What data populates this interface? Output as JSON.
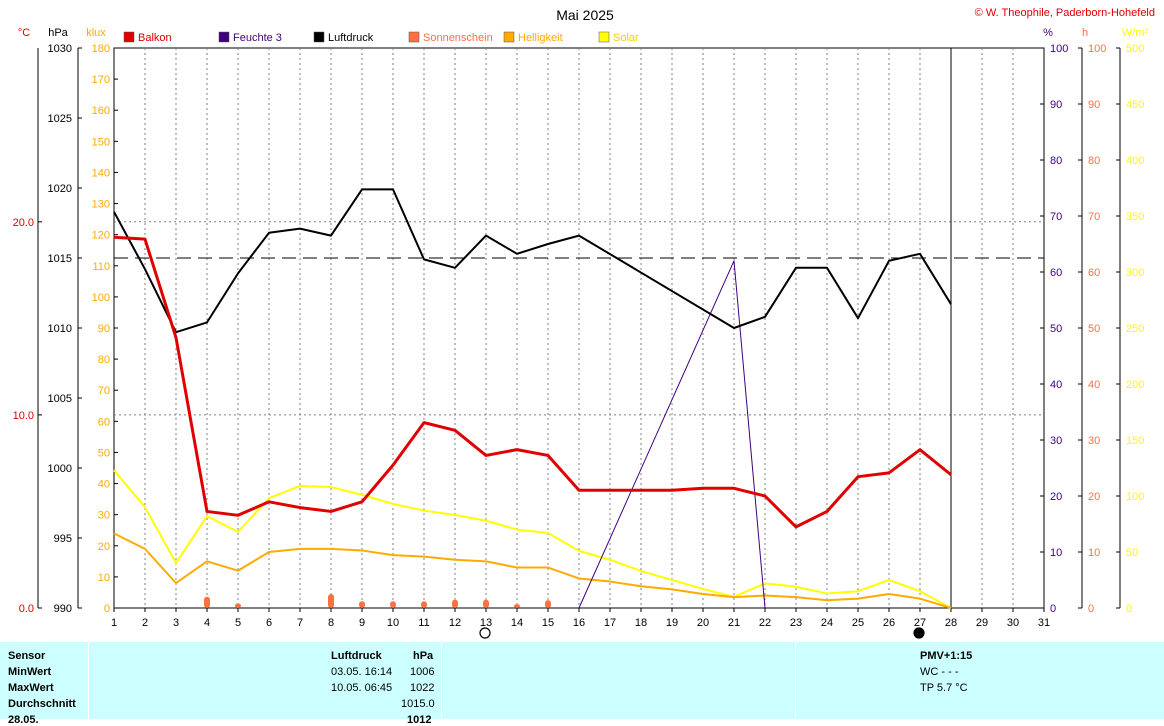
{
  "chart_data": {
    "type": "line",
    "title": "Mai 2025",
    "credit": "© W. Theophile, Paderborn-Hohefeld",
    "x": [
      1,
      2,
      3,
      4,
      5,
      6,
      7,
      8,
      9,
      10,
      11,
      12,
      13,
      14,
      15,
      16,
      17,
      18,
      19,
      20,
      21,
      22,
      23,
      24,
      25,
      26,
      27,
      28,
      29,
      30,
      31
    ],
    "xlim": [
      1,
      31
    ],
    "axes": {
      "temperature": {
        "unit": "°C",
        "range": [
          0,
          29
        ],
        "ticks": [
          0,
          10,
          20
        ],
        "tick_labels": [
          "0.0",
          "10.0",
          "20.0"
        ],
        "color": "#e00000"
      },
      "pressure": {
        "unit": "hPa",
        "range": [
          990,
          1030
        ],
        "ticks": [
          990,
          995,
          1000,
          1005,
          1010,
          1015,
          1020,
          1025,
          1030
        ],
        "color": "#000000"
      },
      "illuminance": {
        "unit": "klux",
        "range": [
          0,
          180
        ],
        "ticks": [
          0,
          10,
          20,
          30,
          40,
          50,
          60,
          70,
          80,
          90,
          100,
          110,
          120,
          130,
          140,
          150,
          160,
          170,
          180
        ],
        "color": "#ffaa00"
      },
      "humidity": {
        "unit": "%",
        "range": [
          0,
          100
        ],
        "ticks": [
          0,
          10,
          20,
          30,
          40,
          50,
          60,
          70,
          80,
          90,
          100
        ],
        "color": "#400080"
      },
      "sunshine": {
        "unit": "h",
        "range": [
          0,
          100
        ],
        "ticks": [
          0,
          10,
          20,
          30,
          40,
          50,
          60,
          70,
          80,
          90,
          100
        ],
        "color": "#ff7040"
      },
      "solar": {
        "unit": "W/m²",
        "range": [
          0,
          500
        ],
        "ticks": [
          0,
          50,
          100,
          150,
          200,
          250,
          300,
          350,
          400,
          450,
          500
        ],
        "color": "#ffff00"
      }
    },
    "grid": true,
    "legend": {
      "placement": "top"
    },
    "series": [
      {
        "name": "Balkon",
        "axis": "temperature",
        "color": "#e00000",
        "x": [
          1,
          2,
          3,
          4,
          5,
          6,
          7,
          8,
          9,
          10,
          11,
          12,
          13,
          14,
          15,
          16,
          17,
          18,
          19,
          20,
          21,
          22,
          23,
          24,
          25,
          26,
          27,
          28
        ],
        "values": [
          19.2,
          19.1,
          14.0,
          5.0,
          4.8,
          5.5,
          5.2,
          5.0,
          5.5,
          7.4,
          9.6,
          9.2,
          7.9,
          8.2,
          7.9,
          6.1,
          6.1,
          6.1,
          6.1,
          6.2,
          6.2,
          5.8,
          4.2,
          5.0,
          6.8,
          7.0,
          8.2,
          6.9
        ]
      },
      {
        "name": "Feuchte 3",
        "axis": "humidity",
        "color": "#400080",
        "x": [
          16,
          21,
          22
        ],
        "values": [
          0,
          62,
          0
        ]
      },
      {
        "name": "Luftdruck",
        "axis": "pressure",
        "color": "#000000",
        "x": [
          1,
          2,
          3,
          4,
          5,
          6,
          7,
          8,
          9,
          10,
          11,
          12,
          13,
          14,
          15,
          16,
          21,
          22,
          23,
          24,
          25,
          26,
          27,
          28
        ],
        "values": [
          1018.3,
          1014.2,
          1009.7,
          1010.4,
          1013.9,
          1016.8,
          1017.1,
          1016.6,
          1019.9,
          1019.9,
          1014.9,
          1014.3,
          1016.6,
          1015.3,
          1016.0,
          1016.6,
          1010.0,
          1010.8,
          1014.3,
          1014.3,
          1010.7,
          1014.8,
          1015.3,
          1011.7
        ],
        "mean": 1015.0
      },
      {
        "name": "Sonnenschein",
        "axis": "sunshine",
        "color": "#ff7040",
        "type": "bar",
        "x": [
          4,
          5,
          8,
          9,
          10,
          11,
          12,
          13,
          14,
          15
        ],
        "values": [
          2.0,
          0.8,
          2.5,
          1.2,
          1.2,
          1.2,
          1.5,
          1.5,
          0.7,
          1.4
        ]
      },
      {
        "name": "Helligkeit",
        "axis": "illuminance",
        "color": "#ffaa00",
        "x": [
          1,
          2,
          3,
          4,
          5,
          6,
          7,
          8,
          9,
          10,
          11,
          12,
          13,
          14,
          15,
          16,
          17,
          18,
          19,
          20,
          21,
          22,
          23,
          24,
          25,
          26,
          27,
          28
        ],
        "values": [
          24,
          19,
          8,
          15,
          12,
          18,
          19,
          19,
          18.5,
          17,
          16.5,
          15.5,
          15,
          13,
          13,
          9.5,
          8.5,
          7,
          6,
          4.5,
          3.5,
          4,
          3.5,
          2.5,
          3,
          4.5,
          3,
          0
        ]
      },
      {
        "name": "Solar",
        "axis": "solar",
        "color": "#ffff00",
        "x": [
          1,
          2,
          3,
          4,
          5,
          6,
          7,
          8,
          9,
          10,
          11,
          12,
          13,
          14,
          15,
          16,
          17,
          18,
          19,
          20,
          21,
          22,
          23,
          24,
          25,
          26,
          27,
          28
        ],
        "values": [
          123,
          90,
          40,
          82,
          68,
          98,
          109,
          108,
          101,
          93,
          87,
          83,
          78,
          70,
          67,
          51,
          43,
          33,
          25,
          17,
          10,
          22,
          19,
          13,
          15,
          25,
          15,
          0
        ]
      }
    ],
    "moon_phases": [
      {
        "x": 13,
        "phase": "full"
      },
      {
        "x": 27,
        "phase": "new"
      }
    ]
  },
  "stats": {
    "headers": {
      "sensor": "Sensor",
      "name": "Luftdruck",
      "unit": "hPa",
      "pmv": "PMV+1:15"
    },
    "rows": [
      {
        "label": "MinWert",
        "time": "03.05.  16:14",
        "value": "1006"
      },
      {
        "label": "MaxWert",
        "time": "10.05.  06:45",
        "value": "1022"
      },
      {
        "label": "Durchschnitt",
        "time": "",
        "value": "1015.0"
      },
      {
        "label": "28.05.",
        "time": "",
        "value": "1012"
      }
    ],
    "wc": "WC - - -",
    "tp": "TP 5.7 °C"
  }
}
